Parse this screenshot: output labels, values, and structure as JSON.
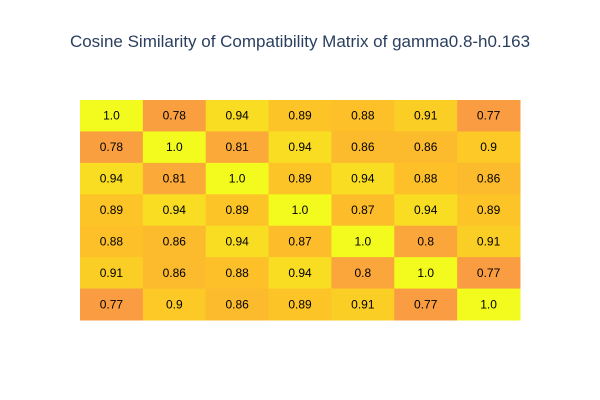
{
  "chart_data": {
    "type": "heatmap",
    "title": "Cosine Similarity of Compatibility Matrix of gamma0.8-h0.163",
    "rows": 7,
    "cols": 7,
    "values": [
      [
        1.0,
        0.78,
        0.94,
        0.89,
        0.88,
        0.91,
        0.77
      ],
      [
        0.78,
        1.0,
        0.81,
        0.94,
        0.86,
        0.86,
        0.9
      ],
      [
        0.94,
        0.81,
        1.0,
        0.89,
        0.94,
        0.88,
        0.86
      ],
      [
        0.89,
        0.94,
        0.89,
        1.0,
        0.87,
        0.94,
        0.89
      ],
      [
        0.88,
        0.86,
        0.94,
        0.87,
        1.0,
        0.8,
        0.91
      ],
      [
        0.91,
        0.86,
        0.88,
        0.94,
        0.8,
        1.0,
        0.77
      ],
      [
        0.77,
        0.9,
        0.86,
        0.89,
        0.91,
        0.77,
        1.0
      ]
    ],
    "labels": [
      [
        "1.0",
        "0.78",
        "0.94",
        "0.89",
        "0.88",
        "0.91",
        "0.77"
      ],
      [
        "0.78",
        "1.0",
        "0.81",
        "0.94",
        "0.86",
        "0.86",
        "0.9"
      ],
      [
        "0.94",
        "0.81",
        "1.0",
        "0.89",
        "0.94",
        "0.88",
        "0.86"
      ],
      [
        "0.89",
        "0.94",
        "0.89",
        "1.0",
        "0.87",
        "0.94",
        "0.89"
      ],
      [
        "0.88",
        "0.86",
        "0.94",
        "0.87",
        "1.0",
        "0.8",
        "0.91"
      ],
      [
        "0.91",
        "0.86",
        "0.88",
        "0.94",
        "0.8",
        "1.0",
        "0.77"
      ],
      [
        "0.77",
        "0.9",
        "0.86",
        "0.89",
        "0.91",
        "0.77",
        "1.0"
      ]
    ],
    "zlim": [
      0.77,
      1.0
    ],
    "colorscale": [
      "#fa9c41",
      "#fdc227",
      "#f2fa1e"
    ],
    "colorbar": false,
    "grid": false
  }
}
